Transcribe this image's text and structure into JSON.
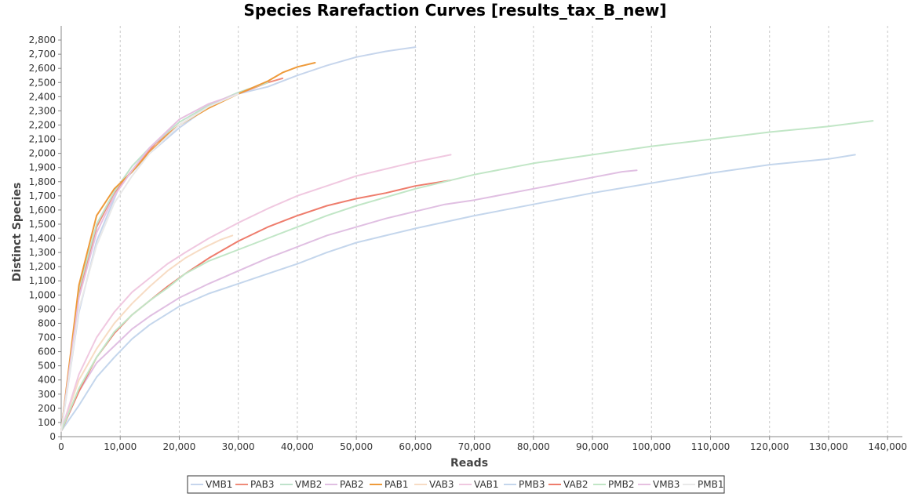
{
  "chart_data": {
    "type": "line",
    "title": "Species Rarefaction Curves [results_tax_B_new]",
    "xlabel": "Reads",
    "ylabel": "Distinct Species",
    "xlim": [
      0,
      142500
    ],
    "ylim": [
      0,
      2900
    ],
    "x_ticks": [
      "0",
      "10,000",
      "20,000",
      "30,000",
      "40,000",
      "50,000",
      "60,000",
      "70,000",
      "80,000",
      "90,000",
      "100,000",
      "110,000",
      "120,000",
      "130,000",
      "140,000"
    ],
    "x_tick_values": [
      0,
      10000,
      20000,
      30000,
      40000,
      50000,
      60000,
      70000,
      80000,
      90000,
      100000,
      110000,
      120000,
      130000,
      140000
    ],
    "y_ticks": [
      "0",
      "100",
      "200",
      "300",
      "400",
      "500",
      "600",
      "700",
      "800",
      "900",
      "1,000",
      "1,100",
      "1,200",
      "1,300",
      "1,400",
      "1,500",
      "1,600",
      "1,700",
      "1,800",
      "1,900",
      "2,000",
      "2,100",
      "2,200",
      "2,300",
      "2,400",
      "2,500",
      "2,600",
      "2,700",
      "2,800"
    ],
    "y_tick_values": [
      0,
      100,
      200,
      300,
      400,
      500,
      600,
      700,
      800,
      900,
      1000,
      1100,
      1200,
      1300,
      1400,
      1500,
      1600,
      1700,
      1800,
      1900,
      2000,
      2100,
      2200,
      2300,
      2400,
      2500,
      2600,
      2700,
      2800
    ],
    "grid": "vertical dashed",
    "legend_position": "bottom",
    "series": [
      {
        "name": "VMB1",
        "color": "#c6d5ec",
        "points": [
          [
            0,
            40
          ],
          [
            3000,
            880
          ],
          [
            6000,
            1380
          ],
          [
            10000,
            1780
          ],
          [
            15000,
            2000
          ],
          [
            20000,
            2180
          ],
          [
            25000,
            2330
          ],
          [
            30000,
            2420
          ],
          [
            35000,
            2470
          ],
          [
            40000,
            2550
          ],
          [
            45000,
            2620
          ],
          [
            50000,
            2680
          ],
          [
            55000,
            2720
          ],
          [
            60000,
            2750
          ]
        ]
      },
      {
        "name": "PAB3",
        "color": "#ef8b79",
        "points": [
          [
            0,
            40
          ],
          [
            3000,
            1000
          ],
          [
            6000,
            1480
          ],
          [
            9000,
            1720
          ],
          [
            12000,
            1880
          ],
          [
            16000,
            2070
          ],
          [
            20000,
            2200
          ],
          [
            25000,
            2330
          ],
          [
            30000,
            2420
          ],
          [
            35000,
            2500
          ],
          [
            37500,
            2530
          ]
        ]
      },
      {
        "name": "VMB2",
        "color": "#bfe2cb",
        "points": [
          [
            0,
            40
          ],
          [
            3000,
            1040
          ],
          [
            6000,
            1500
          ],
          [
            9000,
            1730
          ],
          [
            12000,
            1910
          ],
          [
            15000,
            2040
          ],
          [
            20000,
            2220
          ],
          [
            25000,
            2340
          ],
          [
            30000,
            2430
          ],
          [
            35000,
            2500
          ]
        ]
      },
      {
        "name": "PAB2",
        "color": "#e0bfe2",
        "points": [
          [
            0,
            40
          ],
          [
            3000,
            320
          ],
          [
            6000,
            520
          ],
          [
            9000,
            640
          ],
          [
            12000,
            760
          ],
          [
            15000,
            850
          ],
          [
            20000,
            980
          ],
          [
            25000,
            1080
          ],
          [
            30000,
            1170
          ],
          [
            35000,
            1260
          ],
          [
            40000,
            1340
          ],
          [
            45000,
            1420
          ],
          [
            50000,
            1480
          ],
          [
            55000,
            1540
          ],
          [
            60000,
            1590
          ],
          [
            65000,
            1640
          ],
          [
            70000,
            1670
          ],
          [
            75000,
            1710
          ],
          [
            80000,
            1750
          ],
          [
            85000,
            1790
          ],
          [
            90000,
            1830
          ],
          [
            95000,
            1870
          ],
          [
            97500,
            1880
          ]
        ]
      },
      {
        "name": "PAB1",
        "color": "#ee9a3a",
        "points": [
          [
            0,
            40
          ],
          [
            3000,
            1070
          ],
          [
            6000,
            1560
          ],
          [
            9000,
            1750
          ],
          [
            12000,
            1870
          ],
          [
            15000,
            2010
          ],
          [
            18000,
            2130
          ],
          [
            20000,
            2200
          ],
          [
            25000,
            2320
          ],
          [
            30000,
            2420
          ],
          [
            35000,
            2510
          ],
          [
            37500,
            2570
          ],
          [
            40000,
            2610
          ],
          [
            43000,
            2640
          ]
        ]
      },
      {
        "name": "VAB3",
        "color": "#f7dcc4",
        "points": [
          [
            0,
            40
          ],
          [
            3000,
            400
          ],
          [
            6000,
            620
          ],
          [
            9000,
            800
          ],
          [
            12000,
            940
          ],
          [
            15000,
            1060
          ],
          [
            18000,
            1170
          ],
          [
            21000,
            1260
          ],
          [
            24000,
            1330
          ],
          [
            27000,
            1390
          ],
          [
            29000,
            1420
          ]
        ]
      },
      {
        "name": "VAB1",
        "color": "#f0c8e0",
        "points": [
          [
            0,
            40
          ],
          [
            3000,
            440
          ],
          [
            6000,
            700
          ],
          [
            9000,
            880
          ],
          [
            12000,
            1020
          ],
          [
            15000,
            1120
          ],
          [
            18000,
            1220
          ],
          [
            21000,
            1300
          ],
          [
            25000,
            1400
          ],
          [
            30000,
            1510
          ],
          [
            35000,
            1610
          ],
          [
            40000,
            1700
          ],
          [
            45000,
            1770
          ],
          [
            50000,
            1840
          ],
          [
            55000,
            1890
          ],
          [
            60000,
            1940
          ],
          [
            66000,
            1990
          ]
        ]
      },
      {
        "name": "PMB3",
        "color": "#c4d6ec",
        "points": [
          [
            0,
            40
          ],
          [
            3000,
            220
          ],
          [
            6000,
            420
          ],
          [
            9000,
            560
          ],
          [
            12000,
            690
          ],
          [
            15000,
            790
          ],
          [
            20000,
            920
          ],
          [
            25000,
            1010
          ],
          [
            30000,
            1080
          ],
          [
            35000,
            1150
          ],
          [
            40000,
            1220
          ],
          [
            45000,
            1300
          ],
          [
            50000,
            1370
          ],
          [
            55000,
            1420
          ],
          [
            60000,
            1470
          ],
          [
            70000,
            1560
          ],
          [
            80000,
            1640
          ],
          [
            90000,
            1720
          ],
          [
            100000,
            1790
          ],
          [
            110000,
            1860
          ],
          [
            120000,
            1920
          ],
          [
            130000,
            1960
          ],
          [
            134500,
            1990
          ]
        ]
      },
      {
        "name": "VAB2",
        "color": "#ee7c6c",
        "points": [
          [
            0,
            40
          ],
          [
            3000,
            320
          ],
          [
            6000,
            560
          ],
          [
            9000,
            730
          ],
          [
            12000,
            860
          ],
          [
            15000,
            960
          ],
          [
            18000,
            1060
          ],
          [
            21000,
            1150
          ],
          [
            25000,
            1260
          ],
          [
            30000,
            1380
          ],
          [
            35000,
            1480
          ],
          [
            40000,
            1560
          ],
          [
            45000,
            1630
          ],
          [
            50000,
            1680
          ],
          [
            55000,
            1720
          ],
          [
            60000,
            1770
          ],
          [
            66000,
            1810
          ]
        ]
      },
      {
        "name": "PMB2",
        "color": "#c1e6c6",
        "points": [
          [
            0,
            40
          ],
          [
            3000,
            340
          ],
          [
            6000,
            560
          ],
          [
            9000,
            740
          ],
          [
            12000,
            860
          ],
          [
            15000,
            960
          ],
          [
            18000,
            1050
          ],
          [
            21000,
            1150
          ],
          [
            25000,
            1240
          ],
          [
            30000,
            1320
          ],
          [
            35000,
            1400
          ],
          [
            40000,
            1480
          ],
          [
            45000,
            1560
          ],
          [
            50000,
            1630
          ],
          [
            55000,
            1690
          ],
          [
            60000,
            1750
          ],
          [
            70000,
            1850
          ],
          [
            80000,
            1930
          ],
          [
            90000,
            1990
          ],
          [
            100000,
            2050
          ],
          [
            110000,
            2100
          ],
          [
            120000,
            2150
          ],
          [
            130000,
            2190
          ],
          [
            137500,
            2230
          ]
        ]
      },
      {
        "name": "VMB3",
        "color": "#e6c0e0",
        "points": [
          [
            0,
            40
          ],
          [
            3000,
            980
          ],
          [
            6000,
            1440
          ],
          [
            9000,
            1700
          ],
          [
            12000,
            1880
          ],
          [
            15000,
            2040
          ],
          [
            20000,
            2240
          ],
          [
            25000,
            2350
          ],
          [
            30000,
            2420
          ]
        ]
      },
      {
        "name": "PMB1",
        "color": "#f3f3f3",
        "points": [
          [
            0,
            40
          ],
          [
            3000,
            900
          ],
          [
            6000,
            1350
          ],
          [
            9000,
            1650
          ],
          [
            12000,
            1840
          ],
          [
            15000,
            2000
          ],
          [
            20000,
            2200
          ],
          [
            25000,
            2330
          ],
          [
            30000,
            2420
          ]
        ]
      }
    ]
  }
}
